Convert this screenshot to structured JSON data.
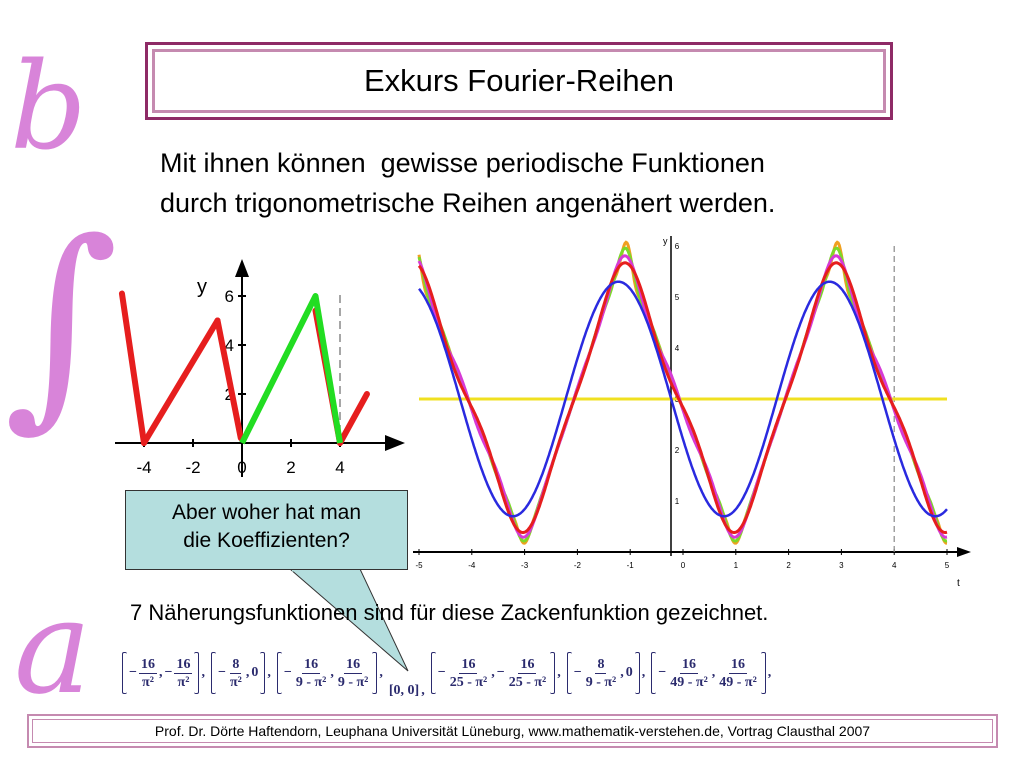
{
  "title": "Exkurs Fourier-Reihen",
  "side_decoration": {
    "letter_top": "b",
    "integral": "∫",
    "letter_bottom": "a",
    "color": "#d884d9"
  },
  "intro": {
    "line1": "Mit ihnen können  gewisse periodische Funktionen",
    "line2": "durch trigonometrische Reihen angenähert werden."
  },
  "callout": {
    "line1": "Aber woher hat man",
    "line2": "die Koeffizienten?"
  },
  "caption": "7 Näherungsfunktionen sind für diese Zackenfunktion gezeichnet.",
  "footer": "Prof. Dr. Dörte Haftendorn, Leuphana Universität Lüneburg, www.mathematik-verstehen.de,  Vortrag Clausthal 2007",
  "colors": {
    "frame": "#8e2a66",
    "frame_light": "#c58ab0",
    "callout_bg": "#b4dede"
  },
  "coefficients": [
    {
      "a": {
        "sign": "−",
        "num": "16",
        "den": "π²"
      },
      "b": {
        "sign": "−",
        "num": "16",
        "den": "π²"
      }
    },
    {
      "a": {
        "sign": "−",
        "num": "8",
        "den": "π²"
      },
      "b": {
        "plain": "0"
      }
    },
    {
      "a": {
        "sign": "−",
        "num": "16",
        "den": "9 - π²"
      },
      "b": {
        "sign": "",
        "num": "16",
        "den": "9 - π²"
      }
    },
    {
      "plain_pair": "[0, 0]"
    },
    {
      "a": {
        "sign": "−",
        "num": "16",
        "den": "25 - π²"
      },
      "b": {
        "sign": "−",
        "num": "16",
        "den": "25 - π²"
      }
    },
    {
      "a": {
        "sign": "−",
        "num": "8",
        "den": "9 - π²"
      },
      "b": {
        "plain": "0"
      }
    },
    {
      "a": {
        "sign": "−",
        "num": "16",
        "den": "49 - π²"
      },
      "b": {
        "sign": "",
        "num": "16",
        "den": "49 - π²"
      }
    }
  ],
  "chart_data": [
    {
      "type": "line",
      "name": "small",
      "xlabel": "",
      "ylabel": "y",
      "xticks": [
        "-4",
        "-2",
        "0",
        "2",
        "4"
      ],
      "yticks": [
        "2",
        "4",
        "6"
      ],
      "xlim": [
        -5,
        6.5
      ],
      "ylim": [
        0,
        7
      ],
      "dashed_x": 4,
      "series": [
        {
          "color": "#e61e1e",
          "x": [
            -5,
            -4,
            -0.9,
            0,
            3,
            4,
            5
          ],
          "y": [
            6.0,
            0,
            5.0,
            0,
            5.0,
            0,
            2.0
          ],
          "segments": "red-left"
        },
        {
          "color": "#22dd22",
          "x": [
            0,
            3,
            4
          ],
          "y": [
            0,
            6.0,
            0
          ]
        }
      ]
    },
    {
      "type": "line",
      "name": "large",
      "xlabel": "t",
      "ylabel": "y",
      "xticks": [
        "-5",
        "-4",
        "-3",
        "-2",
        "-1",
        "0",
        "1",
        "2",
        "3",
        "4",
        "5"
      ],
      "yticks": [
        "1",
        "2",
        "3",
        "4",
        "5",
        "6"
      ],
      "xlim": [
        -5,
        5
      ],
      "ylim": [
        0,
        6
      ],
      "dashed_x": 4,
      "hline": {
        "y": 3,
        "color": "#f0e020"
      },
      "series_colors": [
        "#2a2adf",
        "#e61e1e",
        "#d63ad6",
        "#7cd82a",
        "#f0a020"
      ]
    }
  ]
}
